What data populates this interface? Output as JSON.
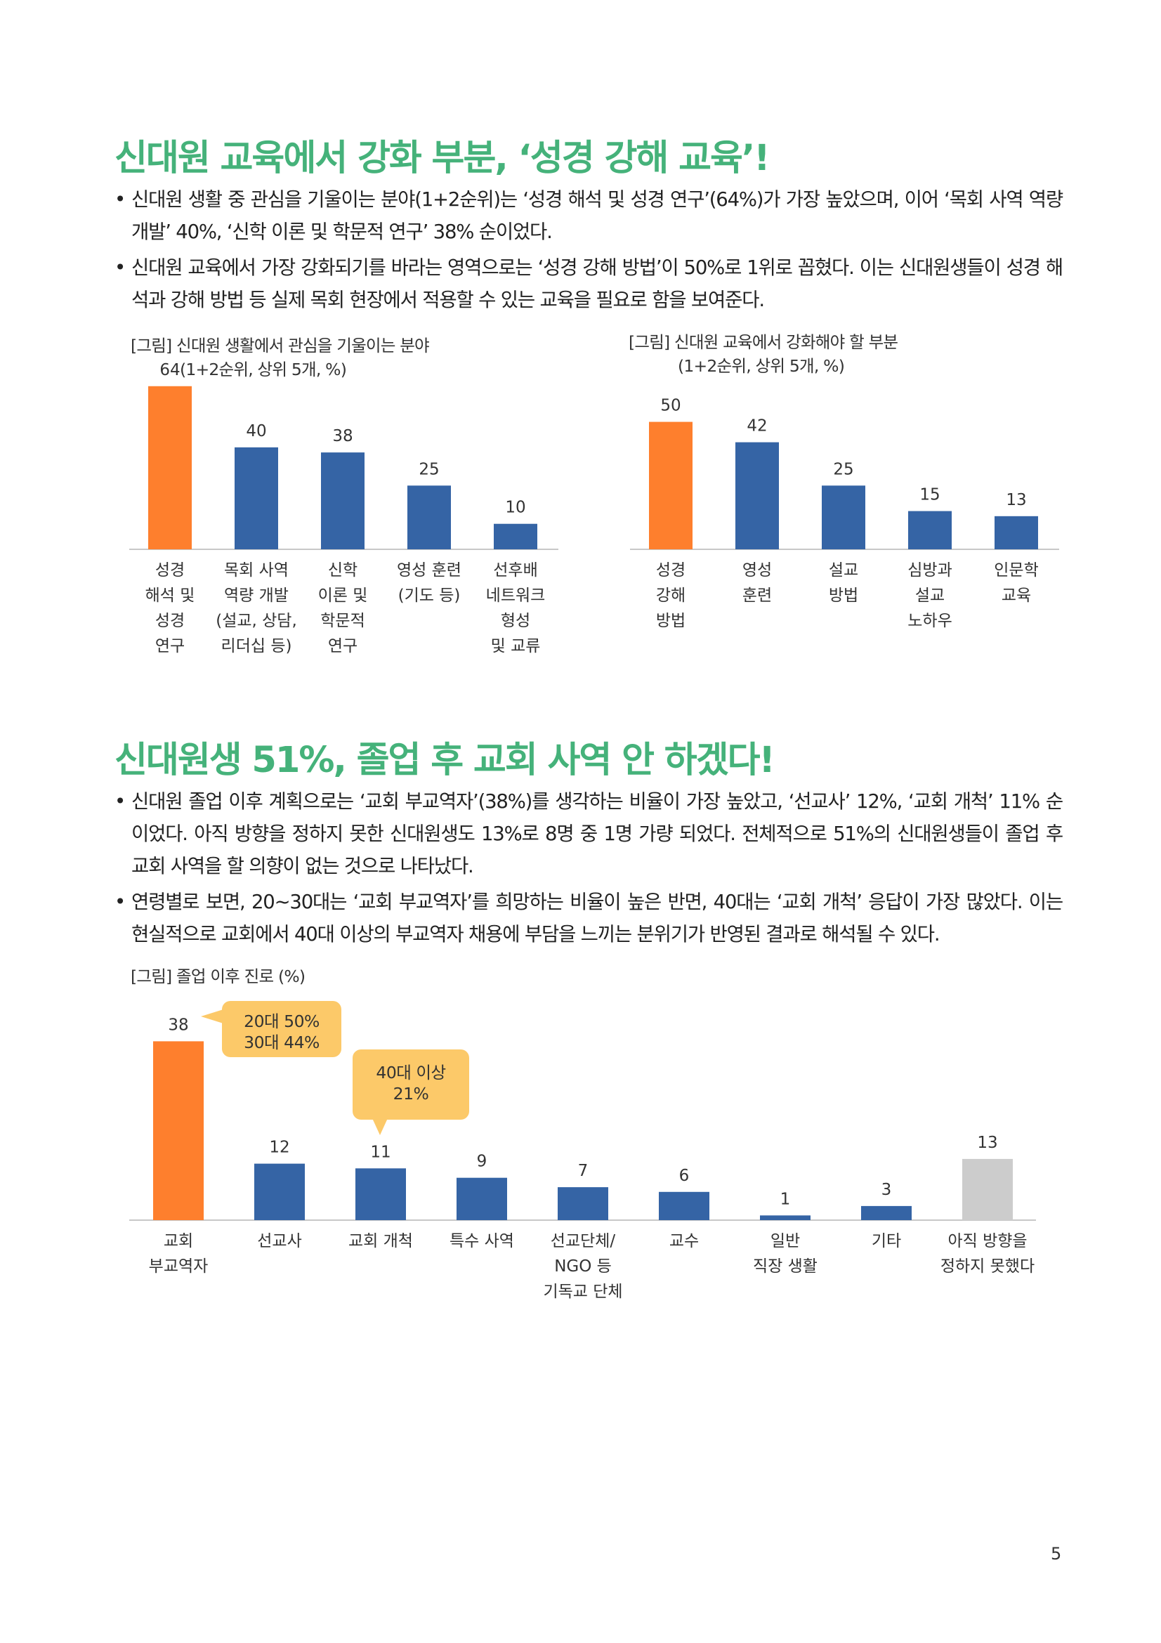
{
  "section1": {
    "heading": "신대원 교육에서 강화 부분, ‘성경 강해 교육’!",
    "bullets": [
      "신대원 생활 중 관심을 기울이는 분야(1+2순위)는 ‘성경 해석 및 성경 연구’(64%)가 가장 높았으며, 이어 ‘목회 사역 역량 개발’ 40%, ‘신학 이론 및 학문적 연구’ 38% 순이었다.",
      "신대원 교육에서 가장 강화되기를 바라는 영역으로는 ‘성경 강해 방법’이 50%로 1위로 꼽혔다. 이는 신대원생들이 성경 해석과 강해 방법 등 실제 목회 현장에서 적용할 수 있는 교육을 필요로 함을 보여준다."
    ]
  },
  "section2": {
    "heading": "신대원생 51%, 졸업 후 교회 사역 안 하겠다!",
    "bullets": [
      "신대원 졸업 이후 계획으로는 ‘교회 부교역자’(38%)를 생각하는 비율이 가장 높았고, ‘선교사’ 12%, ‘교회 개척’ 11% 순이었다. 아직 방향을 정하지 못한 신대원생도 13%로 8명 중 1명 가량 되었다. 전체적으로 51%의 신대원생들이 졸업 후 교회 사역을 할 의향이 없는 것으로 나타났다.",
      "연령별로 보면, 20~30대는 ‘교회 부교역자’를 희망하는 비율이 높은 반면, 40대는 ‘교회 개척’ 응답이 가장 많았다. 이는 현실적으로 교회에서 40대 이상의 부교역자 채용에 부담을 느끼는 분위기가 반영된 결과로 해석될 수 있다."
    ]
  },
  "colors": {
    "heading": "#45b27a",
    "highlight": "#fe7f2d",
    "primary": "#3564a5",
    "neutral": "#cccccc",
    "callout": "#fcc969"
  },
  "chart_data": [
    {
      "type": "bar",
      "title": "[그림] 신대원 생활에서 관심을 기울이는 분야",
      "subtitle": "(1+2순위, 상위 5개, %)",
      "categories": [
        [
          "성경",
          "해석 및",
          "성경",
          "연구"
        ],
        [
          "목회 사역",
          "역량 개발",
          "(설교, 상담,",
          "리더십 등)"
        ],
        [
          "신학",
          "이론 및",
          "학문적",
          "연구"
        ],
        [
          "영성 훈련",
          "(기도 등)"
        ],
        [
          "선후배",
          "네트워크",
          "형성",
          "및 교류"
        ]
      ],
      "values": [
        64,
        40,
        38,
        25,
        10
      ],
      "highlight_index": 0,
      "ylim": [
        0,
        70
      ],
      "grid": false,
      "legend": false
    },
    {
      "type": "bar",
      "title": "[그림] 신대원 교육에서 강화해야 할 부분",
      "subtitle": "(1+2순위, 상위 5개, %)",
      "categories": [
        [
          "성경",
          "강해",
          "방법"
        ],
        [
          "영성",
          "훈련"
        ],
        [
          "설교",
          "방법"
        ],
        [
          "심방과",
          "설교",
          "노하우"
        ],
        [
          "인문학",
          "교육"
        ]
      ],
      "values": [
        50,
        42,
        25,
        15,
        13
      ],
      "highlight_index": 0,
      "ylim": [
        0,
        70
      ],
      "grid": false,
      "legend": false
    },
    {
      "type": "bar",
      "title": "[그림] 졸업 이후 진로 (%)",
      "categories": [
        [
          "교회",
          "부교역자"
        ],
        [
          "선교사"
        ],
        [
          "교회 개척"
        ],
        [
          "특수 사역"
        ],
        [
          "선교단체/",
          "NGO 등",
          "기독교 단체"
        ],
        [
          "교수"
        ],
        [
          "일반",
          "직장 생활"
        ],
        [
          "기타"
        ],
        [
          "아직 방향을",
          "정하지 못했다"
        ]
      ],
      "values": [
        38,
        12,
        11,
        9,
        7,
        6,
        1,
        3,
        13
      ],
      "highlight_index": 0,
      "neutral_index": 8,
      "ylim": [
        0,
        40
      ],
      "grid": false,
      "legend": false,
      "annotations": [
        {
          "category_index": 0,
          "lines": [
            "20대 50%",
            "30대 44%"
          ]
        },
        {
          "category_index": 2,
          "lines": [
            "40대 이상",
            "21%"
          ]
        }
      ]
    }
  ],
  "page_number": "5"
}
